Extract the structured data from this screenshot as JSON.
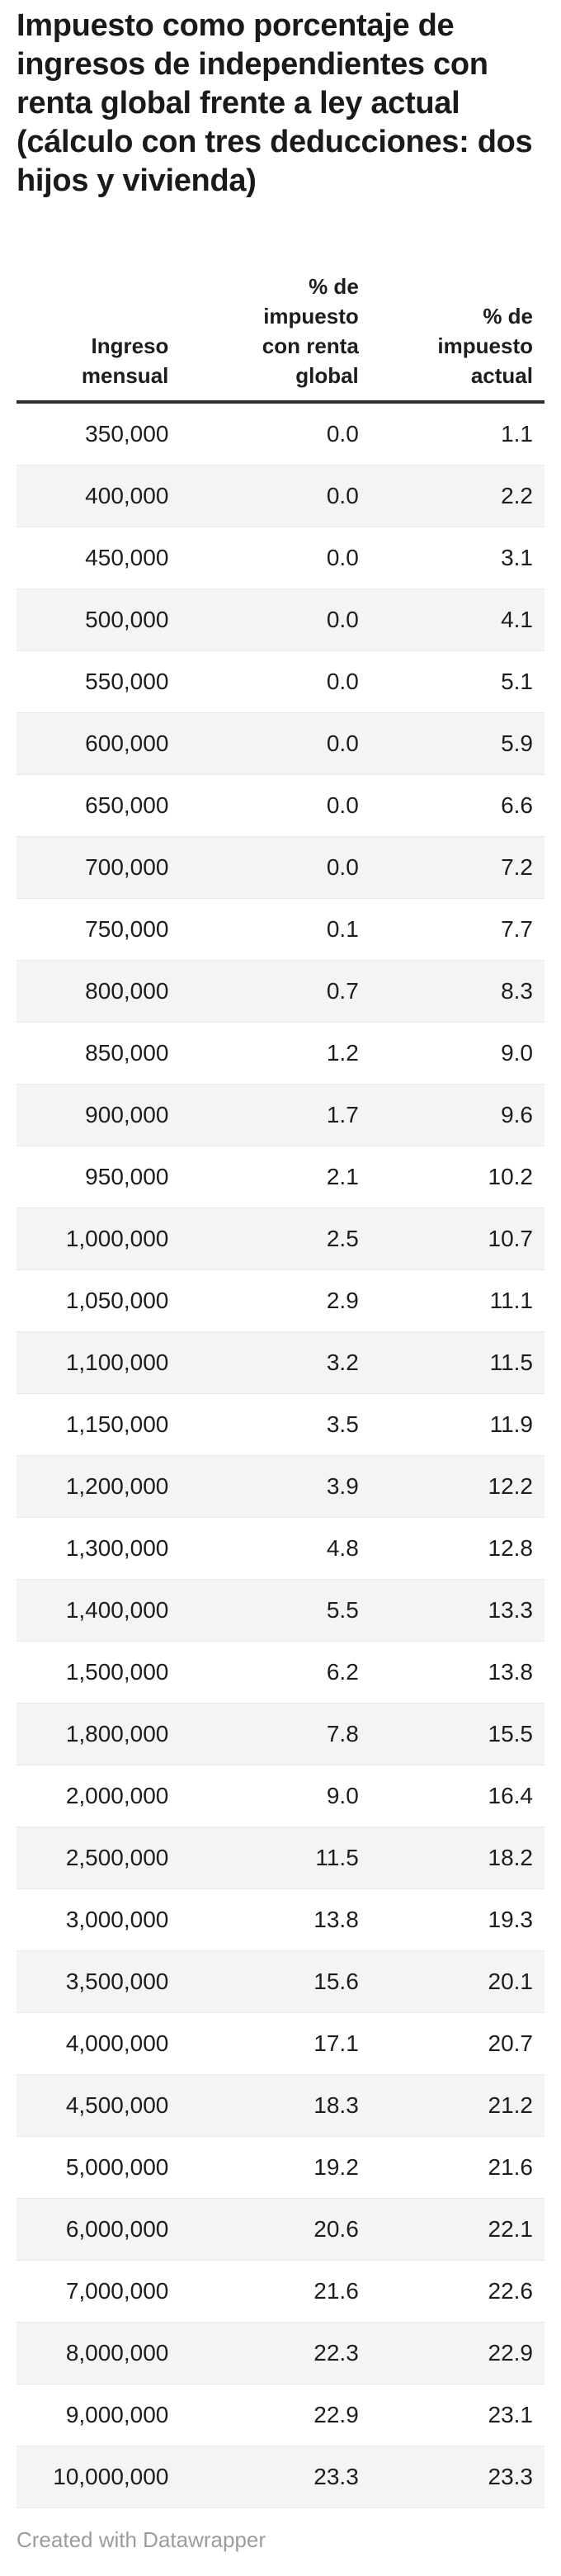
{
  "title": "Impuesto como porcentaje de ingresos de independientes con renta global frente a ley actual (cálculo con tres deducciones: dos hijos y vivienda)",
  "footer": {
    "credit": "Created with Datawrapper"
  },
  "chart_data": {
    "type": "table",
    "title": "Impuesto como porcentaje de ingresos de independientes con renta global frente a ley actual (cálculo con tres deducciones: dos hijos y vivienda)",
    "columns": [
      "Ingreso\nmensual",
      "% de\nimpuesto\ncon renta\nglobal",
      "% de\nimpuesto\nactual"
    ],
    "column_names_plain": [
      "Ingreso mensual",
      "% de impuesto con renta global",
      "% de impuesto actual"
    ],
    "stripe_color": "#f4f4f4",
    "rows": [
      [
        "350,000",
        "0.0",
        "1.1"
      ],
      [
        "400,000",
        "0.0",
        "2.2"
      ],
      [
        "450,000",
        "0.0",
        "3.1"
      ],
      [
        "500,000",
        "0.0",
        "4.1"
      ],
      [
        "550,000",
        "0.0",
        "5.1"
      ],
      [
        "600,000",
        "0.0",
        "5.9"
      ],
      [
        "650,000",
        "0.0",
        "6.6"
      ],
      [
        "700,000",
        "0.0",
        "7.2"
      ],
      [
        "750,000",
        "0.1",
        "7.7"
      ],
      [
        "800,000",
        "0.7",
        "8.3"
      ],
      [
        "850,000",
        "1.2",
        "9.0"
      ],
      [
        "900,000",
        "1.7",
        "9.6"
      ],
      [
        "950,000",
        "2.1",
        "10.2"
      ],
      [
        "1,000,000",
        "2.5",
        "10.7"
      ],
      [
        "1,050,000",
        "2.9",
        "11.1"
      ],
      [
        "1,100,000",
        "3.2",
        "11.5"
      ],
      [
        "1,150,000",
        "3.5",
        "11.9"
      ],
      [
        "1,200,000",
        "3.9",
        "12.2"
      ],
      [
        "1,300,000",
        "4.8",
        "12.8"
      ],
      [
        "1,400,000",
        "5.5",
        "13.3"
      ],
      [
        "1,500,000",
        "6.2",
        "13.8"
      ],
      [
        "1,800,000",
        "7.8",
        "15.5"
      ],
      [
        "2,000,000",
        "9.0",
        "16.4"
      ],
      [
        "2,500,000",
        "11.5",
        "18.2"
      ],
      [
        "3,000,000",
        "13.8",
        "19.3"
      ],
      [
        "3,500,000",
        "15.6",
        "20.1"
      ],
      [
        "4,000,000",
        "17.1",
        "20.7"
      ],
      [
        "4,500,000",
        "18.3",
        "21.2"
      ],
      [
        "5,000,000",
        "19.2",
        "21.6"
      ],
      [
        "6,000,000",
        "20.6",
        "22.1"
      ],
      [
        "7,000,000",
        "21.6",
        "22.6"
      ],
      [
        "8,000,000",
        "22.3",
        "22.9"
      ],
      [
        "9,000,000",
        "22.9",
        "23.1"
      ],
      [
        "10,000,000",
        "23.3",
        "23.3"
      ]
    ]
  }
}
